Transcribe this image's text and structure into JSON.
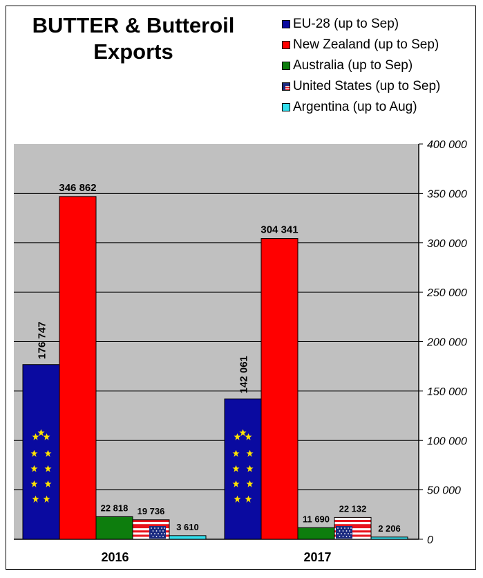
{
  "chart_data": {
    "type": "bar",
    "title": "BUTTER & Butteroil Exports",
    "categories": [
      "2016",
      "2017"
    ],
    "series": [
      {
        "name": "EU-28 (up to Sep)",
        "color": "#0a0aa0",
        "values": [
          176747,
          142061
        ],
        "labels": [
          "176 747",
          "142 061"
        ]
      },
      {
        "name": "New Zealand (up to Sep)",
        "color": "#ff0000",
        "values": [
          346862,
          304341
        ],
        "labels": [
          "346 862",
          "304 341"
        ]
      },
      {
        "name": "Australia (up to Sep)",
        "color": "#0d7d0d",
        "values": [
          22818,
          11690
        ],
        "labels": [
          "22 818",
          "11 690"
        ]
      },
      {
        "name": "United States (up to Sep)",
        "color": "#e8141e",
        "values": [
          19736,
          22132
        ],
        "labels": [
          "19 736",
          "22 132"
        ]
      },
      {
        "name": "Argentina (up to Aug)",
        "color": "#33e0ee",
        "values": [
          3610,
          2206
        ],
        "labels": [
          "3 610",
          "2 206"
        ]
      }
    ],
    "ylim": [
      0,
      400000
    ],
    "yticks": [
      "0",
      "50 000",
      "100 000",
      "150 000",
      "200 000",
      "250 000",
      "300 000",
      "350 000",
      "400 000"
    ],
    "plot_background": "#c0c0c0",
    "grid": true,
    "legend_position": "top-right"
  }
}
